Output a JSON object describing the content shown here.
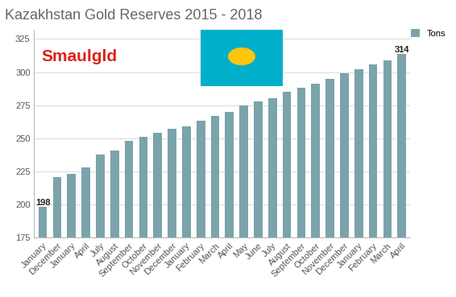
{
  "chart_data": {
    "type": "bar",
    "title": "Kazakhstan Gold Reserves 2015 - 2018",
    "logo": "Smaulgld",
    "categories": [
      "January",
      "December",
      "January",
      "April",
      "July",
      "August",
      "September",
      "October",
      "November",
      "December",
      "January",
      "February",
      "March",
      "April",
      "May",
      "June",
      "July",
      "August",
      "September",
      "October",
      "November",
      "December",
      "January",
      "February",
      "March",
      "April"
    ],
    "series": [
      {
        "name": "Tons",
        "color": "#7aa3ab",
        "values": [
          198,
          221,
          223,
          228,
          238,
          241,
          248,
          251,
          254,
          257,
          259,
          263,
          267,
          270,
          275,
          278,
          280,
          285,
          288,
          291,
          295,
          299,
          302,
          306,
          309,
          314
        ],
        "value_labels": [
          "198",
          null,
          null,
          null,
          null,
          null,
          null,
          null,
          null,
          null,
          null,
          null,
          null,
          null,
          null,
          null,
          null,
          null,
          null,
          null,
          null,
          null,
          null,
          null,
          null,
          "314"
        ]
      }
    ],
    "ylim": [
      175,
      332
    ],
    "yticks": [
      175,
      200,
      225,
      250,
      275,
      300,
      325
    ],
    "grid": true,
    "legend": "upper right"
  }
}
